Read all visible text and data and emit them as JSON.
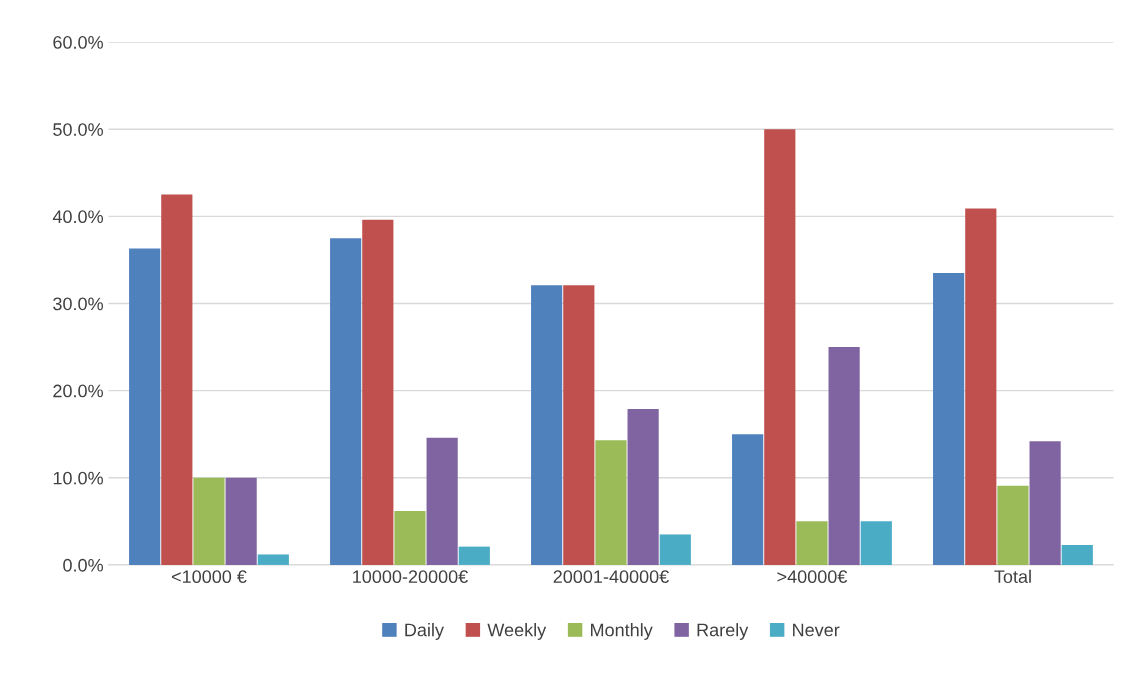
{
  "chart_data": {
    "type": "bar",
    "categories": [
      "<10000 €",
      "10000-20000€",
      "20001-40000€",
      ">40000€",
      "Total"
    ],
    "series": [
      {
        "name": "Daily",
        "color": "#4f81bd",
        "values": [
          36.3,
          37.5,
          32.1,
          15.0,
          33.5
        ]
      },
      {
        "name": "Weekly",
        "color": "#c0504d",
        "values": [
          42.5,
          39.6,
          32.1,
          50.0,
          40.9
        ]
      },
      {
        "name": "Monthly",
        "color": "#9bbb59",
        "values": [
          10.0,
          6.2,
          14.3,
          5.0,
          9.1
        ]
      },
      {
        "name": "Rarely",
        "color": "#8064a2",
        "values": [
          10.0,
          14.6,
          17.9,
          25.0,
          14.2
        ]
      },
      {
        "name": "Never",
        "color": "#4bacc6",
        "values": [
          1.2,
          2.1,
          3.5,
          5.0,
          2.3
        ]
      }
    ],
    "ylim": [
      0,
      60
    ],
    "yticks": [
      {
        "value": 0,
        "label": "0.0%"
      },
      {
        "value": 10,
        "label": "10.0%"
      },
      {
        "value": 20,
        "label": "20.0%"
      },
      {
        "value": 30,
        "label": "30.0%"
      },
      {
        "value": 40,
        "label": "40.0%"
      },
      {
        "value": 50,
        "label": "50.0%"
      },
      {
        "value": 60,
        "label": "60.0%"
      }
    ],
    "grid": "y",
    "legend": "bottom"
  }
}
